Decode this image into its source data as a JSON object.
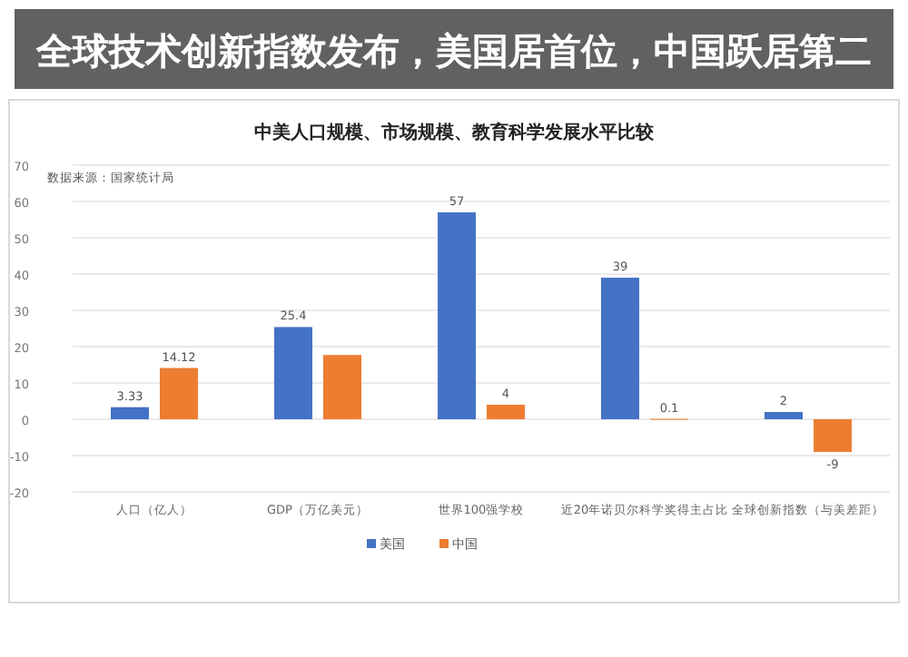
{
  "chart_data": {
    "type": "bar",
    "title": "中美人口规模、市场规模、教育科学发展水平比较",
    "categories": [
      "人口（亿人）",
      "GDP（万亿美元）",
      "世界100强学校",
      "近20年诺贝尔科学奖得主占比",
      "全球创新指数（与美差距）"
    ],
    "series": [
      {
        "name": "美国",
        "color": "#4472c4",
        "values": [
          3.33,
          25.4,
          57,
          39,
          2
        ],
        "value_labels": [
          "3.33",
          "25.4",
          "57",
          "39",
          "2"
        ]
      },
      {
        "name": "中国",
        "color": "#ed7d31",
        "values": [
          14.12,
          17.7,
          4,
          0.1,
          -9
        ],
        "value_labels": [
          "14.12",
          null,
          "4",
          "0.1",
          "-9"
        ]
      }
    ],
    "ylim": [
      -20,
      70
    ],
    "yticks": [
      -20,
      -10,
      0,
      10,
      20,
      30,
      40,
      50,
      60,
      70
    ],
    "grid": "y",
    "legend": "bottom",
    "annotations": [
      "数据来源：国家统计局",
      "全球技术创新指数发布，美国居首位，中国跃居第二"
    ]
  }
}
